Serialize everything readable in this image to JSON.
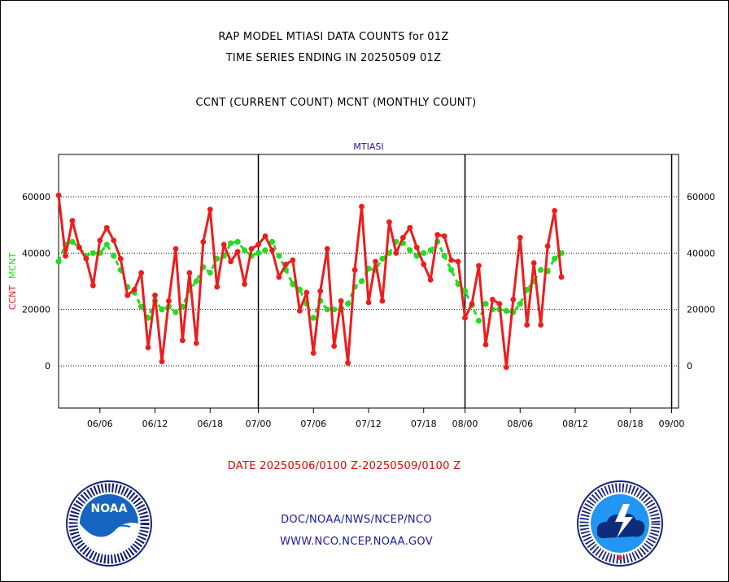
{
  "header": {
    "title_line1": "RAP MODEL MTIASI DATA COUNTS for 01Z",
    "title_line2": "TIME SERIES ENDING IN 20250509 01Z",
    "subtitle": "CCNT (CURRENT COUNT) MCNT (MONTHLY COUNT)"
  },
  "footer": {
    "date_range": "DATE 20250506/0100 Z-20250509/0100 Z",
    "org_path": "DOC/NOAA/NWS/NCEP/NCO",
    "website": "WWW.NCO.NCEP.NOAA.GOV"
  },
  "logos": {
    "noaa": {
      "text": "NOAA",
      "ring_text": "NATIONAL OCEANIC AND ATMOSPHERIC ADMINISTRATION · U.S. DEPARTMENT OF COMMERCE"
    },
    "nws": {
      "ring_text": "NATIONAL WEATHER SERVICE"
    }
  },
  "colors": {
    "ccnt": "#ee1c1c",
    "mcnt": "#22dd22",
    "title": "#1a1aa6",
    "axis": "#000000"
  },
  "chart_data": {
    "type": "line",
    "title": "MTIASI",
    "ylabel_ccnt": "CCNT",
    "ylabel_mcnt": "MCNT",
    "ylim": [
      -15000,
      75000
    ],
    "yticks": [
      0,
      20000,
      40000,
      60000
    ],
    "ytick_labels": [
      "0",
      "20000",
      "40000",
      "60000"
    ],
    "x_index_range": [
      0,
      90
    ],
    "xticks": [
      {
        "i": 6,
        "label": "06/06"
      },
      {
        "i": 14,
        "label": "06/12"
      },
      {
        "i": 22,
        "label": "06/18"
      },
      {
        "i": 29,
        "label": "07/00"
      },
      {
        "i": 37,
        "label": "07/06"
      },
      {
        "i": 45,
        "label": "07/12"
      },
      {
        "i": 53,
        "label": "07/18"
      },
      {
        "i": 59,
        "label": "08/00"
      },
      {
        "i": 67,
        "label": "08/06"
      },
      {
        "i": 75,
        "label": "08/12"
      },
      {
        "i": 83,
        "label": "08/18"
      },
      {
        "i": 89,
        "label": "09/00"
      }
    ],
    "month_separators": [
      29,
      59,
      89
    ],
    "grid": "horizontal dotted",
    "series": [
      {
        "name": "CCNT",
        "color": "#ee1c1c",
        "values": [
          60500,
          39000,
          51500,
          42000,
          38000,
          28500,
          44500,
          49000,
          44500,
          38000,
          25000,
          27000,
          33000,
          6500,
          25000,
          1500,
          23000,
          41500,
          9000,
          33000,
          8000,
          44000,
          55500,
          28000,
          43000,
          37000,
          40500,
          29000,
          41500,
          43000,
          46000,
          41000,
          31500,
          36000,
          37500,
          19500,
          26000,
          4500,
          26500,
          41500,
          7000,
          23000,
          1000,
          34000,
          56500,
          22500,
          37000,
          23000,
          51000,
          40000,
          45500,
          49000,
          42000,
          36000,
          30500,
          46500,
          46000,
          37500,
          37000,
          17000,
          22000,
          35500,
          7500,
          23500,
          22000,
          -500,
          23500,
          45500,
          14500,
          36500,
          14500,
          42500,
          55000,
          31500
        ]
      },
      {
        "name": "MCNT",
        "color": "#22dd22",
        "values": [
          37000,
          43000,
          44000,
          42000,
          39000,
          40000,
          40000,
          43000,
          39000,
          34000,
          28000,
          26000,
          21000,
          17000,
          23000,
          20000,
          21000,
          19000,
          21000,
          27000,
          30000,
          35000,
          33000,
          38000,
          39000,
          43500,
          44000,
          41000,
          39000,
          40000,
          41000,
          44000,
          39000,
          34000,
          29000,
          27000,
          22000,
          17000,
          23000,
          20000,
          20000,
          20000,
          22000,
          28000,
          30000,
          34500,
          34000,
          38000,
          40000,
          44000,
          43500,
          41000,
          39000,
          40000,
          41000,
          44000,
          39000,
          34000,
          29000,
          26500,
          21500,
          16000,
          22000,
          20000,
          20000,
          19500,
          19000,
          22000,
          27000,
          30000,
          34000,
          33500,
          38000,
          40000
        ]
      }
    ]
  }
}
